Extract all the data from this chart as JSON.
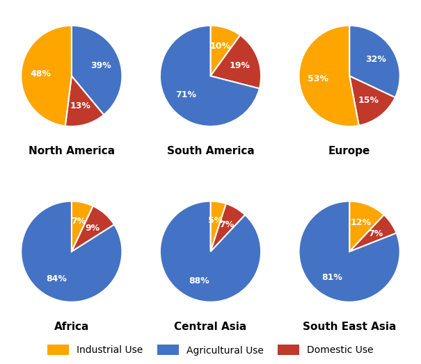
{
  "regions": [
    "North America",
    "South America",
    "Europe",
    "Africa",
    "Central Asia",
    "South East Asia"
  ],
  "data": {
    "North America": {
      "Industrial": 48,
      "Agricultural": 39,
      "Domestic": 13
    },
    "South America": {
      "Industrial": 10,
      "Agricultural": 71,
      "Domestic": 19
    },
    "Europe": {
      "Industrial": 53,
      "Agricultural": 32,
      "Domestic": 15
    },
    "Africa": {
      "Industrial": 7,
      "Agricultural": 84,
      "Domestic": 9
    },
    "Central Asia": {
      "Industrial": 5,
      "Agricultural": 88,
      "Domestic": 7
    },
    "South East Asia": {
      "Industrial": 12,
      "Agricultural": 81,
      "Domestic": 7
    }
  },
  "colors": {
    "Industrial": "#FFA500",
    "Agricultural": "#4472C4",
    "Domestic": "#C0392B"
  },
  "legend_labels": [
    "Industrial Use",
    "Agricultural Use",
    "Domestic Use"
  ],
  "label_color": "white",
  "label_fontsize": 9,
  "title_fontsize": 11,
  "background_color": "#ffffff",
  "slice_orders": {
    "North America": [
      "Agricultural",
      "Domestic",
      "Industrial"
    ],
    "South America": [
      "Industrial",
      "Domestic",
      "Agricultural"
    ],
    "Europe": [
      "Agricultural",
      "Domestic",
      "Industrial"
    ],
    "Africa": [
      "Industrial",
      "Domestic",
      "Agricultural"
    ],
    "Central Asia": [
      "Industrial",
      "Domestic",
      "Agricultural"
    ],
    "South East Asia": [
      "Industrial",
      "Domestic",
      "Agricultural"
    ]
  },
  "start_angles": {
    "North America": 90,
    "South America": 90,
    "Europe": 90,
    "Africa": 90,
    "Central Asia": 90,
    "South East Asia": 90
  }
}
